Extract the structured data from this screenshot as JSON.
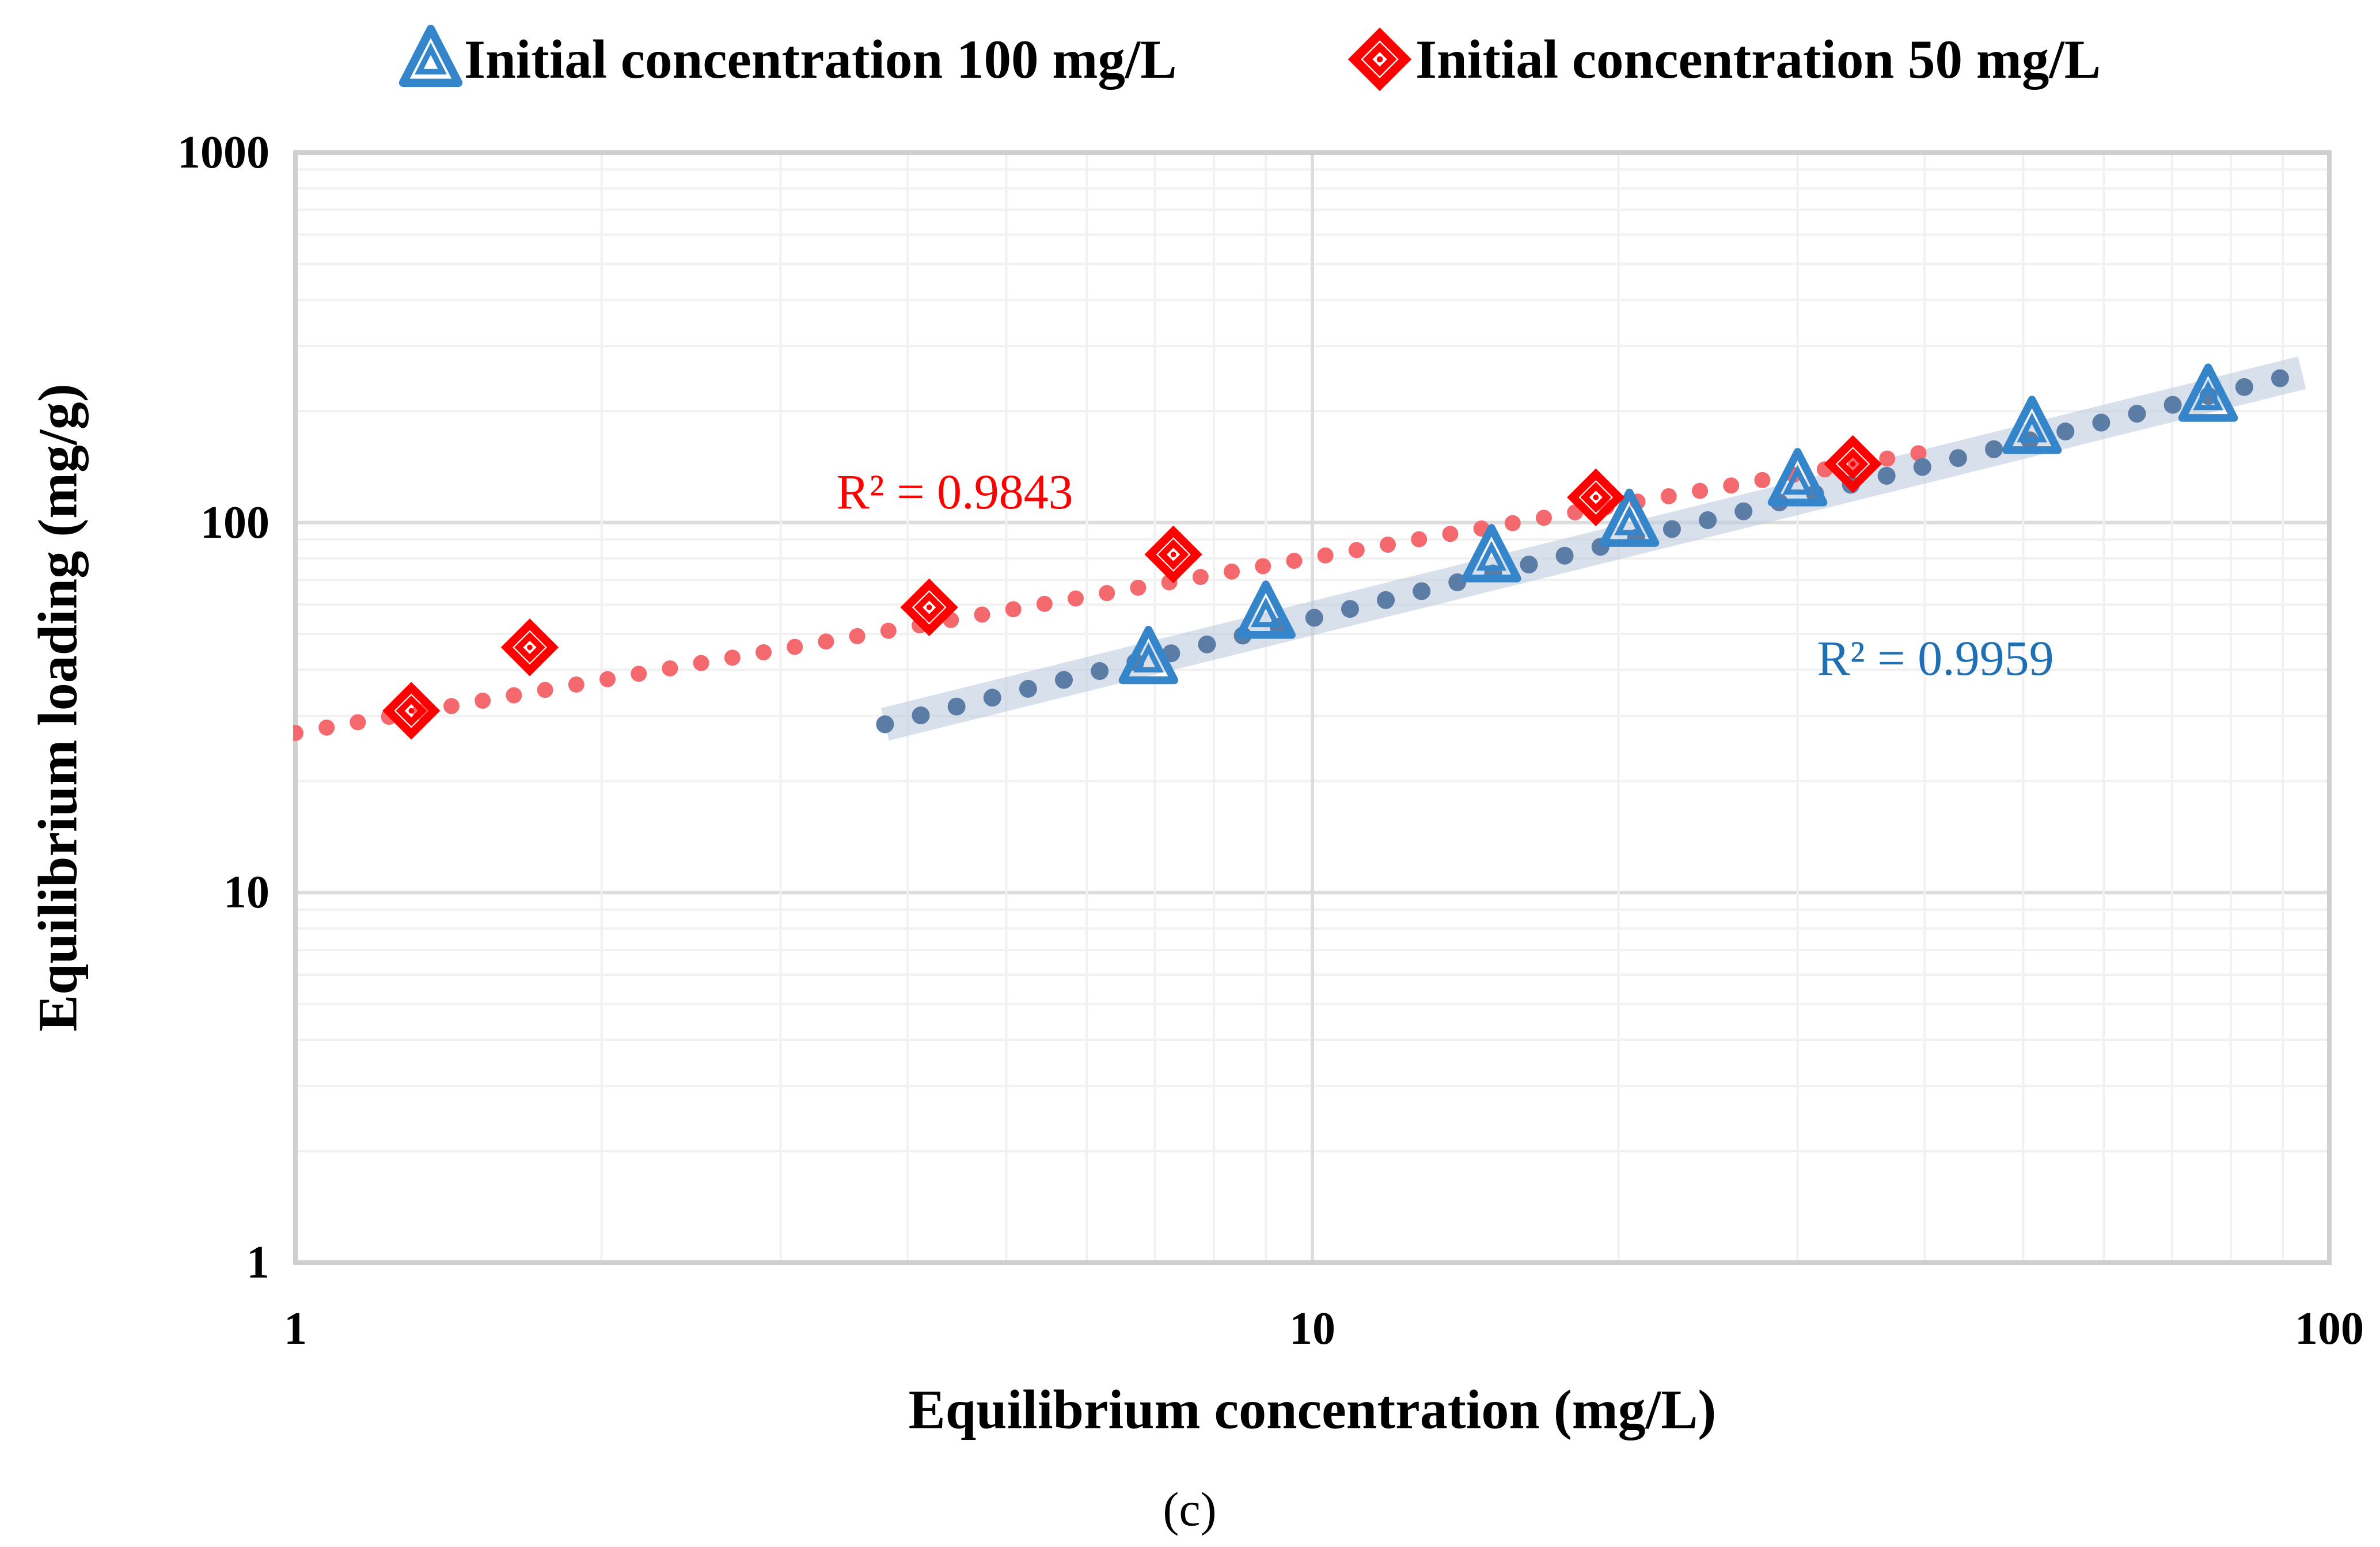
{
  "legend": {
    "items": [
      {
        "label": "Initial concentration 100 mg/L",
        "series": "c100",
        "marker": "triangle",
        "color": "#3585CA"
      },
      {
        "label": "Initial concentration 50 mg/L",
        "series": "c50",
        "marker": "diamond",
        "color": "#FF0000"
      }
    ]
  },
  "axes": {
    "x": {
      "title": "Equilibrium concentration (mg/L)",
      "scale": "log",
      "min": 1,
      "max": 100,
      "tick_labels": [
        "1",
        "10",
        "100"
      ]
    },
    "y": {
      "title": "Equilibrium loading (mg/g)",
      "scale": "log",
      "min": 1,
      "max": 1000,
      "tick_labels": [
        "1",
        "10",
        "100",
        "1000"
      ]
    }
  },
  "caption": "(c)",
  "chart_data": {
    "type": "scatter",
    "title": "",
    "x_scale": "log",
    "y_scale": "log",
    "xlim": [
      1,
      100
    ],
    "ylim": [
      1,
      1000
    ],
    "grid": "log major and minor gridlines, light gray",
    "legend_position": "top",
    "series": [
      {
        "name": "Initial concentration 100 mg/L",
        "marker": "triangle",
        "color": "#3585CA",
        "points": [
          [
            6.9,
            43
          ],
          [
            9,
            57
          ],
          [
            15,
            81
          ],
          [
            20.5,
            101
          ],
          [
            30,
            130
          ],
          [
            51,
            180
          ],
          [
            76,
            220
          ]
        ],
        "trendline": {
          "type": "power-dotted",
          "color": "#5B7CA5",
          "band_color": "#BECBDD",
          "x1": 3.8,
          "y1": 28.5,
          "x2": 94,
          "y2": 254,
          "r2": 0.9959
        }
      },
      {
        "name": "Initial concentration 50 mg/L",
        "marker": "diamond",
        "color": "#FF0000",
        "points": [
          [
            1.3,
            31
          ],
          [
            1.7,
            46
          ],
          [
            4.2,
            59
          ],
          [
            7.3,
            82
          ],
          [
            19,
            117
          ],
          [
            34,
            144
          ]
        ],
        "trendline": {
          "type": "power-dotted",
          "color": "#F4696E",
          "band_color": null,
          "x1": 1,
          "y1": 27,
          "x2": 40,
          "y2": 155,
          "r2": 0.9843
        }
      }
    ],
    "annotations": [
      {
        "text": "R² = 0.9843",
        "x": 4.45,
        "y": 121,
        "color": "#FF0000"
      },
      {
        "text": "R² = 0.9959",
        "x": 41,
        "y": 43,
        "color": "#1F6FB5"
      }
    ]
  }
}
